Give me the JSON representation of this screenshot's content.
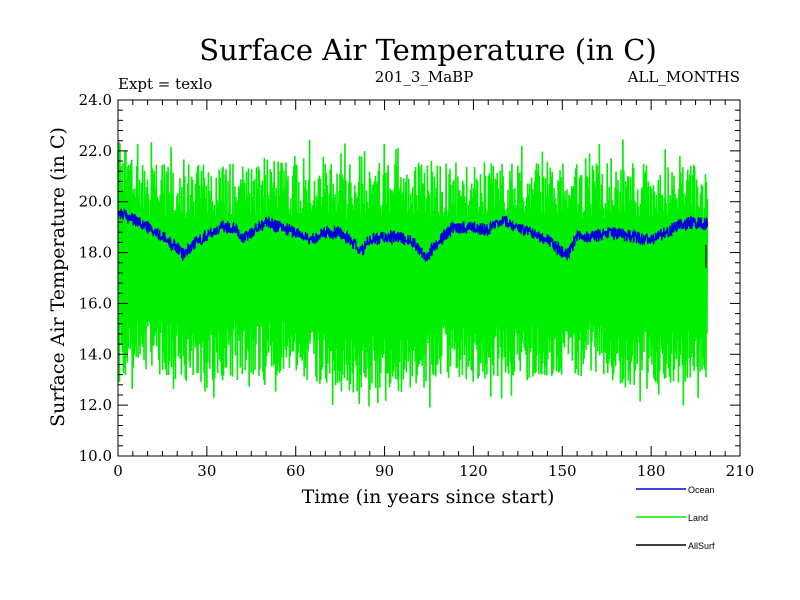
{
  "chart_data": {
    "type": "line",
    "title": "Surface Air Temperature (in C)",
    "subtitle_left": "Expt = texlo",
    "subtitle_center": "201_3_MaBP",
    "subtitle_right": "ALL_MONTHS",
    "xlabel": "Time (in years since start)",
    "ylabel": "Surface Air Temperature (in C)",
    "xlim": [
      0,
      210
    ],
    "ylim": [
      10.0,
      24.0
    ],
    "x_ticks": [
      0,
      30,
      60,
      90,
      120,
      150,
      180,
      210
    ],
    "x_tick_labels": [
      "0",
      "30",
      "60",
      "90",
      "120",
      "150",
      "180",
      "210"
    ],
    "y_ticks": [
      10.0,
      12.0,
      14.0,
      16.0,
      18.0,
      20.0,
      22.0,
      24.0
    ],
    "y_tick_labels": [
      "10.0",
      "12.0",
      "14.0",
      "16.0",
      "18.0",
      "20.0",
      "22.0",
      "24.0"
    ],
    "legend_position": "bottom-right",
    "series": [
      {
        "name": "Land",
        "color": "#00ee00",
        "x_range": [
          0,
          199
        ],
        "mean_envelope_upper": [
          22.5,
          21.5,
          21.5,
          21.5,
          21.5,
          21.7,
          21.6,
          21.5,
          21.5,
          21.6,
          21.6,
          21.5,
          21.6,
          21.5,
          21.6,
          21.6,
          21.5,
          21.6,
          21.6,
          21.5,
          21.6
        ],
        "mean_envelope_lower": [
          13.0,
          13.3,
          13.0,
          12.6,
          13.2,
          13.1,
          13.1,
          12.7,
          12.4,
          12.6,
          12.4,
          13.0,
          12.9,
          13.0,
          12.9,
          13.0,
          13.1,
          12.7,
          12.8,
          12.8,
          13.0
        ],
        "max": 22.5,
        "min": 11.5
      },
      {
        "name": "Ocean",
        "color": "#0000dd",
        "x": [
          0,
          5,
          10,
          15,
          20,
          22,
          25,
          30,
          35,
          40,
          42,
          45,
          50,
          55,
          60,
          65,
          70,
          75,
          80,
          82,
          85,
          90,
          95,
          100,
          104,
          108,
          112,
          115,
          120,
          125,
          130,
          132,
          135,
          140,
          145,
          150,
          152,
          155,
          160,
          165,
          170,
          175,
          180,
          185,
          190,
          195,
          199
        ],
        "values": [
          19.6,
          19.3,
          19.0,
          18.6,
          18.2,
          17.9,
          18.3,
          18.7,
          19.0,
          19.0,
          18.5,
          18.8,
          19.2,
          19.0,
          18.8,
          18.5,
          18.8,
          18.8,
          18.3,
          18.0,
          18.5,
          18.6,
          18.6,
          18.4,
          17.8,
          18.4,
          18.9,
          19.0,
          19.0,
          18.9,
          19.2,
          19.2,
          18.9,
          18.8,
          18.5,
          18.0,
          17.9,
          18.7,
          18.6,
          18.8,
          18.7,
          18.6,
          18.5,
          18.8,
          19.1,
          19.2,
          19.1
        ]
      },
      {
        "name": "AllSurf",
        "color": "#000000",
        "x": [
          198.5,
          198.5
        ],
        "values": [
          17.4,
          18.3
        ]
      }
    ]
  }
}
